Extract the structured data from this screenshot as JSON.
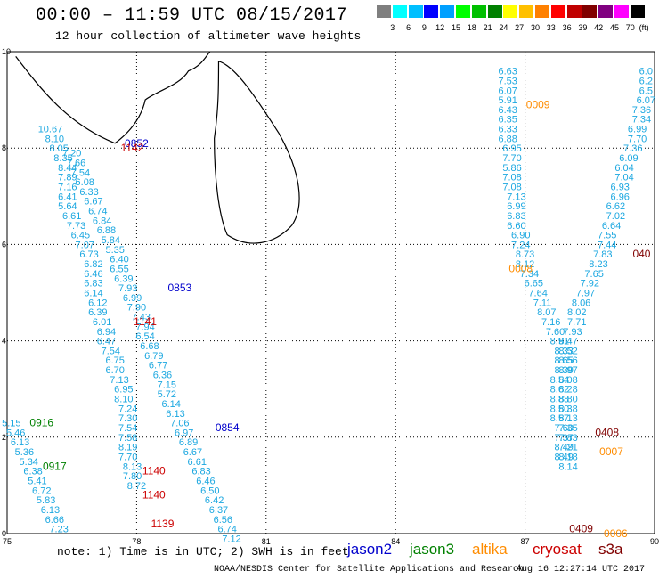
{
  "header": {
    "title": "00:00 – 11:59 UTC 08/15/2017",
    "subtitle": "12 hour collection of altimeter wave heights"
  },
  "colorbar": {
    "unit": "(ft)",
    "colors": [
      "#7f7f7f",
      "#00ffff",
      "#00bfff",
      "#0000ff",
      "#00a0ff",
      "#00ff00",
      "#00c000",
      "#008000",
      "#ffff00",
      "#ffc000",
      "#ff8000",
      "#ff0000",
      "#c00000",
      "#800000",
      "#800080",
      "#ff00ff",
      "#000000"
    ],
    "labels": [
      "3",
      "6",
      "9",
      "12",
      "15",
      "18",
      "21",
      "24",
      "27",
      "30",
      "33",
      "36",
      "39",
      "42",
      "45",
      "70"
    ]
  },
  "axes": {
    "x_ticks": [
      "75",
      "78",
      "81",
      "84",
      "87",
      "90"
    ],
    "y_ticks": [
      "0",
      "2",
      "4",
      "6",
      "8",
      "10"
    ]
  },
  "satellites": [
    {
      "name": "jason2",
      "color": "#0000cc"
    },
    {
      "name": "jason3",
      "color": "#008000"
    },
    {
      "name": "altika",
      "color": "#ff8c00"
    },
    {
      "name": "cryosat",
      "color": "#cc0000"
    },
    {
      "name": "s3a",
      "color": "#800000"
    }
  ],
  "pass_times": [
    {
      "time": "0852",
      "sat": "jason2",
      "lon": 78.0,
      "lat": 8.1
    },
    {
      "time": "1142",
      "sat": "cryosat",
      "lon": 77.9,
      "lat": 8.0
    },
    {
      "time": "0853",
      "sat": "jason2",
      "lon": 79.0,
      "lat": 5.1
    },
    {
      "time": "1141",
      "sat": "cryosat",
      "lon": 78.2,
      "lat": 4.4
    },
    {
      "time": "0854",
      "sat": "jason2",
      "lon": 80.1,
      "lat": 2.2
    },
    {
      "time": "0916",
      "sat": "jason3",
      "lon": 75.8,
      "lat": 2.3
    },
    {
      "time": "0917",
      "sat": "jason3",
      "lon": 76.1,
      "lat": 1.4
    },
    {
      "time": "1140",
      "sat": "cryosat",
      "lon": 78.4,
      "lat": 1.3
    },
    {
      "time": "1140",
      "sat": "cryosat",
      "lon": 78.4,
      "lat": 0.8
    },
    {
      "time": "1139",
      "sat": "cryosat",
      "lon": 78.6,
      "lat": 0.2
    },
    {
      "time": "0009",
      "sat": "altika",
      "lon": 87.3,
      "lat": 8.9
    },
    {
      "time": "0008",
      "sat": "altika",
      "lon": 86.9,
      "lat": 5.5
    },
    {
      "time": "0007",
      "sat": "altika",
      "lon": 89.0,
      "lat": 1.7
    },
    {
      "time": "0006",
      "sat": "altika",
      "lon": 89.1,
      "lat": 0.0
    },
    {
      "time": "040",
      "sat": "s3a",
      "lon": 89.7,
      "lat": 5.8
    },
    {
      "time": "0408",
      "sat": "s3a",
      "lon": 88.9,
      "lat": 2.1
    },
    {
      "time": "0409",
      "sat": "s3a",
      "lon": 88.3,
      "lat": 0.1
    }
  ],
  "tracks": [
    {
      "name": "west-a",
      "points": [
        {
          "lon": 75.1,
          "lat": 2.3,
          "v": "5.15"
        },
        {
          "lon": 75.2,
          "lat": 2.1,
          "v": "5.46"
        },
        {
          "lon": 75.3,
          "lat": 1.9,
          "v": "6.13"
        },
        {
          "lon": 75.4,
          "lat": 1.7,
          "v": "5.36"
        },
        {
          "lon": 75.5,
          "lat": 1.5,
          "v": "5.34"
        },
        {
          "lon": 75.6,
          "lat": 1.3,
          "v": "6.38"
        },
        {
          "lon": 75.7,
          "lat": 1.1,
          "v": "5.41"
        },
        {
          "lon": 75.8,
          "lat": 0.9,
          "v": "6.72"
        },
        {
          "lon": 75.9,
          "lat": 0.7,
          "v": "5.83"
        },
        {
          "lon": 76.0,
          "lat": 0.5,
          "v": "6.13"
        },
        {
          "lon": 76.1,
          "lat": 0.3,
          "v": "6.66"
        },
        {
          "lon": 76.2,
          "lat": 0.1,
          "v": "7.23"
        }
      ]
    },
    {
      "name": "west-b",
      "points": [
        {
          "lon": 76.0,
          "lat": 8.4,
          "v": "10.67"
        },
        {
          "lon": 76.1,
          "lat": 8.2,
          "v": "8.10"
        },
        {
          "lon": 76.2,
          "lat": 8.0,
          "v": "8.05"
        },
        {
          "lon": 76.3,
          "lat": 7.8,
          "v": "8.35"
        },
        {
          "lon": 76.4,
          "lat": 7.6,
          "v": "8.44"
        },
        {
          "lon": 76.4,
          "lat": 7.4,
          "v": "7.89"
        },
        {
          "lon": 76.4,
          "lat": 7.2,
          "v": "7.16"
        },
        {
          "lon": 76.4,
          "lat": 7.0,
          "v": "6.41"
        },
        {
          "lon": 76.4,
          "lat": 6.8,
          "v": "5.64"
        },
        {
          "lon": 76.5,
          "lat": 6.6,
          "v": "6.61"
        },
        {
          "lon": 76.6,
          "lat": 6.4,
          "v": "7.73"
        },
        {
          "lon": 76.7,
          "lat": 6.2,
          "v": "6.45"
        },
        {
          "lon": 76.8,
          "lat": 6.0,
          "v": "7.07"
        },
        {
          "lon": 76.9,
          "lat": 5.8,
          "v": "6.73"
        },
        {
          "lon": 77.0,
          "lat": 5.6,
          "v": "6.82"
        },
        {
          "lon": 77.0,
          "lat": 5.4,
          "v": "6.46"
        },
        {
          "lon": 77.0,
          "lat": 5.2,
          "v": "6.83"
        },
        {
          "lon": 77.0,
          "lat": 5.0,
          "v": "6.14"
        },
        {
          "lon": 77.1,
          "lat": 4.8,
          "v": "6.12"
        },
        {
          "lon": 77.1,
          "lat": 4.6,
          "v": "6.39"
        },
        {
          "lon": 77.2,
          "lat": 4.4,
          "v": "6.01"
        },
        {
          "lon": 77.3,
          "lat": 4.2,
          "v": "6.94"
        },
        {
          "lon": 77.3,
          "lat": 4.0,
          "v": "6.47"
        },
        {
          "lon": 77.4,
          "lat": 3.8,
          "v": "7.54"
        },
        {
          "lon": 77.5,
          "lat": 3.6,
          "v": "6.75"
        },
        {
          "lon": 77.5,
          "lat": 3.4,
          "v": "6.70"
        },
        {
          "lon": 77.6,
          "lat": 3.2,
          "v": "7.13"
        },
        {
          "lon": 77.7,
          "lat": 3.0,
          "v": "6.95"
        },
        {
          "lon": 77.7,
          "lat": 2.8,
          "v": "8.10"
        },
        {
          "lon": 77.8,
          "lat": 2.6,
          "v": "7.24"
        },
        {
          "lon": 77.8,
          "lat": 2.4,
          "v": "7.30"
        },
        {
          "lon": 77.8,
          "lat": 2.2,
          "v": "7.54"
        },
        {
          "lon": 77.8,
          "lat": 2.0,
          "v": "7.58"
        },
        {
          "lon": 77.8,
          "lat": 1.8,
          "v": "8.19"
        },
        {
          "lon": 77.8,
          "lat": 1.6,
          "v": "7.70"
        },
        {
          "lon": 77.9,
          "lat": 1.4,
          "v": "8.13"
        },
        {
          "lon": 77.9,
          "lat": 1.2,
          "v": "7.80"
        },
        {
          "lon": 78.0,
          "lat": 1.0,
          "v": "8.72"
        }
      ]
    },
    {
      "name": "west-c",
      "points": [
        {
          "lon": 76.5,
          "lat": 7.9,
          "v": "7.20"
        },
        {
          "lon": 76.6,
          "lat": 7.7,
          "v": "7.66"
        },
        {
          "lon": 76.7,
          "lat": 7.5,
          "v": "7.54"
        },
        {
          "lon": 76.8,
          "lat": 7.3,
          "v": "6.08"
        },
        {
          "lon": 76.9,
          "lat": 7.1,
          "v": "6.33"
        },
        {
          "lon": 77.0,
          "lat": 6.9,
          "v": "6.67"
        },
        {
          "lon": 77.1,
          "lat": 6.7,
          "v": "6.74"
        },
        {
          "lon": 77.2,
          "lat": 6.5,
          "v": "6.84"
        },
        {
          "lon": 77.3,
          "lat": 6.3,
          "v": "6.88"
        },
        {
          "lon": 77.4,
          "lat": 6.1,
          "v": "5.84"
        },
        {
          "lon": 77.5,
          "lat": 5.9,
          "v": "5.35"
        },
        {
          "lon": 77.6,
          "lat": 5.7,
          "v": "6.40"
        },
        {
          "lon": 77.6,
          "lat": 5.5,
          "v": "6.55"
        },
        {
          "lon": 77.7,
          "lat": 5.3,
          "v": "6.39"
        },
        {
          "lon": 77.8,
          "lat": 5.1,
          "v": "7.93"
        },
        {
          "lon": 77.9,
          "lat": 4.9,
          "v": "6.99"
        },
        {
          "lon": 78.0,
          "lat": 4.7,
          "v": "7.90"
        },
        {
          "lon": 78.1,
          "lat": 4.5,
          "v": "7.43"
        },
        {
          "lon": 78.2,
          "lat": 4.3,
          "v": "7.94"
        },
        {
          "lon": 78.2,
          "lat": 4.1,
          "v": "6.54"
        },
        {
          "lon": 78.3,
          "lat": 3.9,
          "v": "6.68"
        },
        {
          "lon": 78.4,
          "lat": 3.7,
          "v": "6.79"
        },
        {
          "lon": 78.5,
          "lat": 3.5,
          "v": "6.77"
        },
        {
          "lon": 78.6,
          "lat": 3.3,
          "v": "6.36"
        },
        {
          "lon": 78.7,
          "lat": 3.1,
          "v": "7.15"
        },
        {
          "lon": 78.7,
          "lat": 2.9,
          "v": "5.72"
        },
        {
          "lon": 78.8,
          "lat": 2.7,
          "v": "6.14"
        },
        {
          "lon": 78.9,
          "lat": 2.5,
          "v": "6.13"
        },
        {
          "lon": 79.0,
          "lat": 2.3,
          "v": "7.06"
        },
        {
          "lon": 79.1,
          "lat": 2.1,
          "v": "6.97"
        },
        {
          "lon": 79.2,
          "lat": 1.9,
          "v": "6.89"
        },
        {
          "lon": 79.3,
          "lat": 1.7,
          "v": "6.67"
        },
        {
          "lon": 79.4,
          "lat": 1.5,
          "v": "6.61"
        },
        {
          "lon": 79.5,
          "lat": 1.3,
          "v": "6.83"
        },
        {
          "lon": 79.6,
          "lat": 1.1,
          "v": "6.46"
        },
        {
          "lon": 79.7,
          "lat": 0.9,
          "v": "6.50"
        },
        {
          "lon": 79.8,
          "lat": 0.7,
          "v": "6.42"
        },
        {
          "lon": 79.9,
          "lat": 0.5,
          "v": "6.37"
        },
        {
          "lon": 80.0,
          "lat": 0.3,
          "v": "6.56"
        },
        {
          "lon": 80.1,
          "lat": 0.1,
          "v": "6.74"
        },
        {
          "lon": 80.2,
          "lat": -0.1,
          "v": "7.12"
        }
      ]
    },
    {
      "name": "east-a",
      "points": [
        {
          "lon": 86.6,
          "lat": 9.6,
          "v": "6.63"
        },
        {
          "lon": 86.6,
          "lat": 9.4,
          "v": "7.53"
        },
        {
          "lon": 86.6,
          "lat": 9.2,
          "v": "6.07"
        },
        {
          "lon": 86.6,
          "lat": 9.0,
          "v": "5.91"
        },
        {
          "lon": 86.6,
          "lat": 8.8,
          "v": "6.43"
        },
        {
          "lon": 86.6,
          "lat": 8.6,
          "v": "6.35"
        },
        {
          "lon": 86.6,
          "lat": 8.4,
          "v": "6.33"
        },
        {
          "lon": 86.6,
          "lat": 8.2,
          "v": "6.88"
        },
        {
          "lon": 86.7,
          "lat": 8.0,
          "v": "6.95"
        },
        {
          "lon": 86.7,
          "lat": 7.8,
          "v": "7.70"
        },
        {
          "lon": 86.7,
          "lat": 7.6,
          "v": "5.86"
        },
        {
          "lon": 86.7,
          "lat": 7.4,
          "v": "7.08"
        },
        {
          "lon": 86.7,
          "lat": 7.2,
          "v": "7.08"
        },
        {
          "lon": 86.8,
          "lat": 7.0,
          "v": "7.13"
        },
        {
          "lon": 86.8,
          "lat": 6.8,
          "v": "6.99"
        },
        {
          "lon": 86.8,
          "lat": 6.6,
          "v": "6.83"
        },
        {
          "lon": 86.8,
          "lat": 6.4,
          "v": "6.60"
        },
        {
          "lon": 86.9,
          "lat": 6.2,
          "v": "6.90"
        },
        {
          "lon": 86.9,
          "lat": 6.0,
          "v": "7.24"
        },
        {
          "lon": 87.0,
          "lat": 5.8,
          "v": "8.73"
        },
        {
          "lon": 87.0,
          "lat": 5.6,
          "v": "8.12"
        },
        {
          "lon": 87.1,
          "lat": 5.4,
          "v": "7.34"
        },
        {
          "lon": 87.2,
          "lat": 5.2,
          "v": "6.65"
        },
        {
          "lon": 87.3,
          "lat": 5.0,
          "v": "7.64"
        },
        {
          "lon": 87.4,
          "lat": 4.8,
          "v": "7.11"
        },
        {
          "lon": 87.5,
          "lat": 4.6,
          "v": "8.07"
        },
        {
          "lon": 87.6,
          "lat": 4.4,
          "v": "7.16"
        },
        {
          "lon": 87.7,
          "lat": 4.2,
          "v": "7.60"
        },
        {
          "lon": 87.8,
          "lat": 4.0,
          "v": "8.91"
        },
        {
          "lon": 87.9,
          "lat": 3.8,
          "v": "8.33"
        },
        {
          "lon": 88.0,
          "lat": 3.6,
          "v": "8.56"
        },
        {
          "lon": 88.0,
          "lat": 3.4,
          "v": "8.97"
        },
        {
          "lon": 88.0,
          "lat": 3.2,
          "v": "8.08"
        },
        {
          "lon": 88.0,
          "lat": 3.0,
          "v": "8.28"
        },
        {
          "lon": 88.0,
          "lat": 2.8,
          "v": "8.80"
        },
        {
          "lon": 88.0,
          "lat": 2.6,
          "v": "8.38"
        },
        {
          "lon": 88.0,
          "lat": 2.4,
          "v": "8.13"
        },
        {
          "lon": 88.0,
          "lat": 2.2,
          "v": "7.35"
        },
        {
          "lon": 88.0,
          "lat": 2.0,
          "v": "7.83"
        },
        {
          "lon": 88.0,
          "lat": 1.8,
          "v": "7.21"
        },
        {
          "lon": 88.0,
          "lat": 1.6,
          "v": "8.18"
        }
      ]
    },
    {
      "name": "east-b",
      "points": [
        {
          "lon": 89.8,
          "lat": 9.6,
          "v": "6.0"
        },
        {
          "lon": 89.8,
          "lat": 9.4,
          "v": "6.2"
        },
        {
          "lon": 89.8,
          "lat": 9.2,
          "v": "6.5"
        },
        {
          "lon": 89.8,
          "lat": 9.0,
          "v": "6.07"
        },
        {
          "lon": 89.7,
          "lat": 8.8,
          "v": "7.36"
        },
        {
          "lon": 89.7,
          "lat": 8.6,
          "v": "7.34"
        },
        {
          "lon": 89.6,
          "lat": 8.4,
          "v": "6.99"
        },
        {
          "lon": 89.6,
          "lat": 8.2,
          "v": "7.70"
        },
        {
          "lon": 89.5,
          "lat": 8.0,
          "v": "7.36"
        },
        {
          "lon": 89.4,
          "lat": 7.8,
          "v": "6.09"
        },
        {
          "lon": 89.3,
          "lat": 7.6,
          "v": "6.04"
        },
        {
          "lon": 89.3,
          "lat": 7.4,
          "v": "7.04"
        },
        {
          "lon": 89.2,
          "lat": 7.2,
          "v": "6.93"
        },
        {
          "lon": 89.2,
          "lat": 7.0,
          "v": "6.96"
        },
        {
          "lon": 89.1,
          "lat": 6.8,
          "v": "6.62"
        },
        {
          "lon": 89.1,
          "lat": 6.6,
          "v": "7.02"
        },
        {
          "lon": 89.0,
          "lat": 6.4,
          "v": "6.64"
        },
        {
          "lon": 88.9,
          "lat": 6.2,
          "v": "7.55"
        },
        {
          "lon": 88.9,
          "lat": 6.0,
          "v": "7.44"
        },
        {
          "lon": 88.8,
          "lat": 5.8,
          "v": "7.83"
        },
        {
          "lon": 88.7,
          "lat": 5.6,
          "v": "8.23"
        },
        {
          "lon": 88.6,
          "lat": 5.4,
          "v": "7.65"
        },
        {
          "lon": 88.5,
          "lat": 5.2,
          "v": "7.92"
        },
        {
          "lon": 88.4,
          "lat": 5.0,
          "v": "7.97"
        },
        {
          "lon": 88.3,
          "lat": 4.8,
          "v": "8.06"
        },
        {
          "lon": 88.2,
          "lat": 4.6,
          "v": "8.02"
        },
        {
          "lon": 88.2,
          "lat": 4.4,
          "v": "7.71"
        },
        {
          "lon": 88.1,
          "lat": 4.2,
          "v": "7.93"
        },
        {
          "lon": 88.0,
          "lat": 4.0,
          "v": "8.47"
        },
        {
          "lon": 88.0,
          "lat": 3.8,
          "v": "8.52"
        },
        {
          "lon": 87.9,
          "lat": 3.6,
          "v": "8.65"
        },
        {
          "lon": 87.9,
          "lat": 3.4,
          "v": "8.39"
        },
        {
          "lon": 87.8,
          "lat": 3.2,
          "v": "8.54"
        },
        {
          "lon": 87.8,
          "lat": 3.0,
          "v": "8.62"
        },
        {
          "lon": 87.8,
          "lat": 2.8,
          "v": "8.88"
        },
        {
          "lon": 87.8,
          "lat": 2.6,
          "v": "8.50"
        },
        {
          "lon": 87.8,
          "lat": 2.4,
          "v": "8.57"
        },
        {
          "lon": 87.9,
          "lat": 2.2,
          "v": "7.60"
        },
        {
          "lon": 87.9,
          "lat": 2.0,
          "v": "7.37"
        },
        {
          "lon": 87.9,
          "lat": 1.8,
          "v": "8.49"
        },
        {
          "lon": 87.9,
          "lat": 1.6,
          "v": "8.49"
        },
        {
          "lon": 88.0,
          "lat": 1.4,
          "v": "8.14"
        }
      ]
    }
  ],
  "footer": {
    "note": "note: 1) Time is in UTC; 2) SWH is in feet",
    "credit": "NOAA/NESDIS Center for Satellite Applications and Research",
    "timestamp": "Aug 16 12:27:14 UTC 2017"
  }
}
